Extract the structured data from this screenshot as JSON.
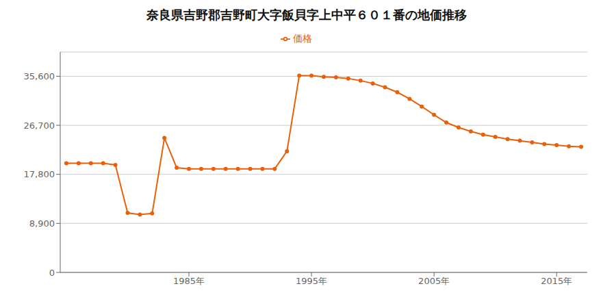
{
  "chart_data": {
    "type": "line",
    "title": "奈良県吉野郡吉野町大字飯貝字上中平６０１番の地価推移",
    "x": [
      1975,
      1976,
      1977,
      1978,
      1979,
      1980,
      1981,
      1982,
      1983,
      1984,
      1985,
      1986,
      1987,
      1988,
      1989,
      1990,
      1991,
      1992,
      1993,
      1994,
      1995,
      1996,
      1997,
      1998,
      1999,
      2000,
      2001,
      2002,
      2003,
      2004,
      2005,
      2006,
      2007,
      2008,
      2009,
      2010,
      2011,
      2012,
      2013,
      2014,
      2015,
      2016,
      2017
    ],
    "series": [
      {
        "name": "価格",
        "color": "#e8600a",
        "marker": "circle",
        "values": [
          19800,
          19800,
          19800,
          19800,
          19500,
          10800,
          10500,
          10700,
          24400,
          19000,
          18800,
          18800,
          18800,
          18800,
          18800,
          18800,
          18800,
          18800,
          22000,
          35700,
          35700,
          35500,
          35400,
          35200,
          34800,
          34300,
          33600,
          32700,
          31500,
          30100,
          28600,
          27200,
          26300,
          25600,
          25000,
          24600,
          24200,
          23900,
          23600,
          23300,
          23100,
          22900,
          22800
        ]
      }
    ],
    "xlim": [
      1974.5,
      2017.5
    ],
    "xticks": [
      {
        "value": 1985,
        "label": "1985年"
      },
      {
        "value": 1995,
        "label": "1995年"
      },
      {
        "value": 2005,
        "label": "2005年"
      },
      {
        "value": 2015,
        "label": "2015年"
      }
    ],
    "ylim": [
      0,
      40000
    ],
    "yticks": [
      0,
      {
        "value": 8900,
        "label": "8,900"
      },
      {
        "value": 17800,
        "label": "17,800"
      },
      {
        "value": 26700,
        "label": "26,700"
      },
      {
        "value": 35600,
        "label": "35,600"
      }
    ],
    "grid": true,
    "legend": "top"
  }
}
